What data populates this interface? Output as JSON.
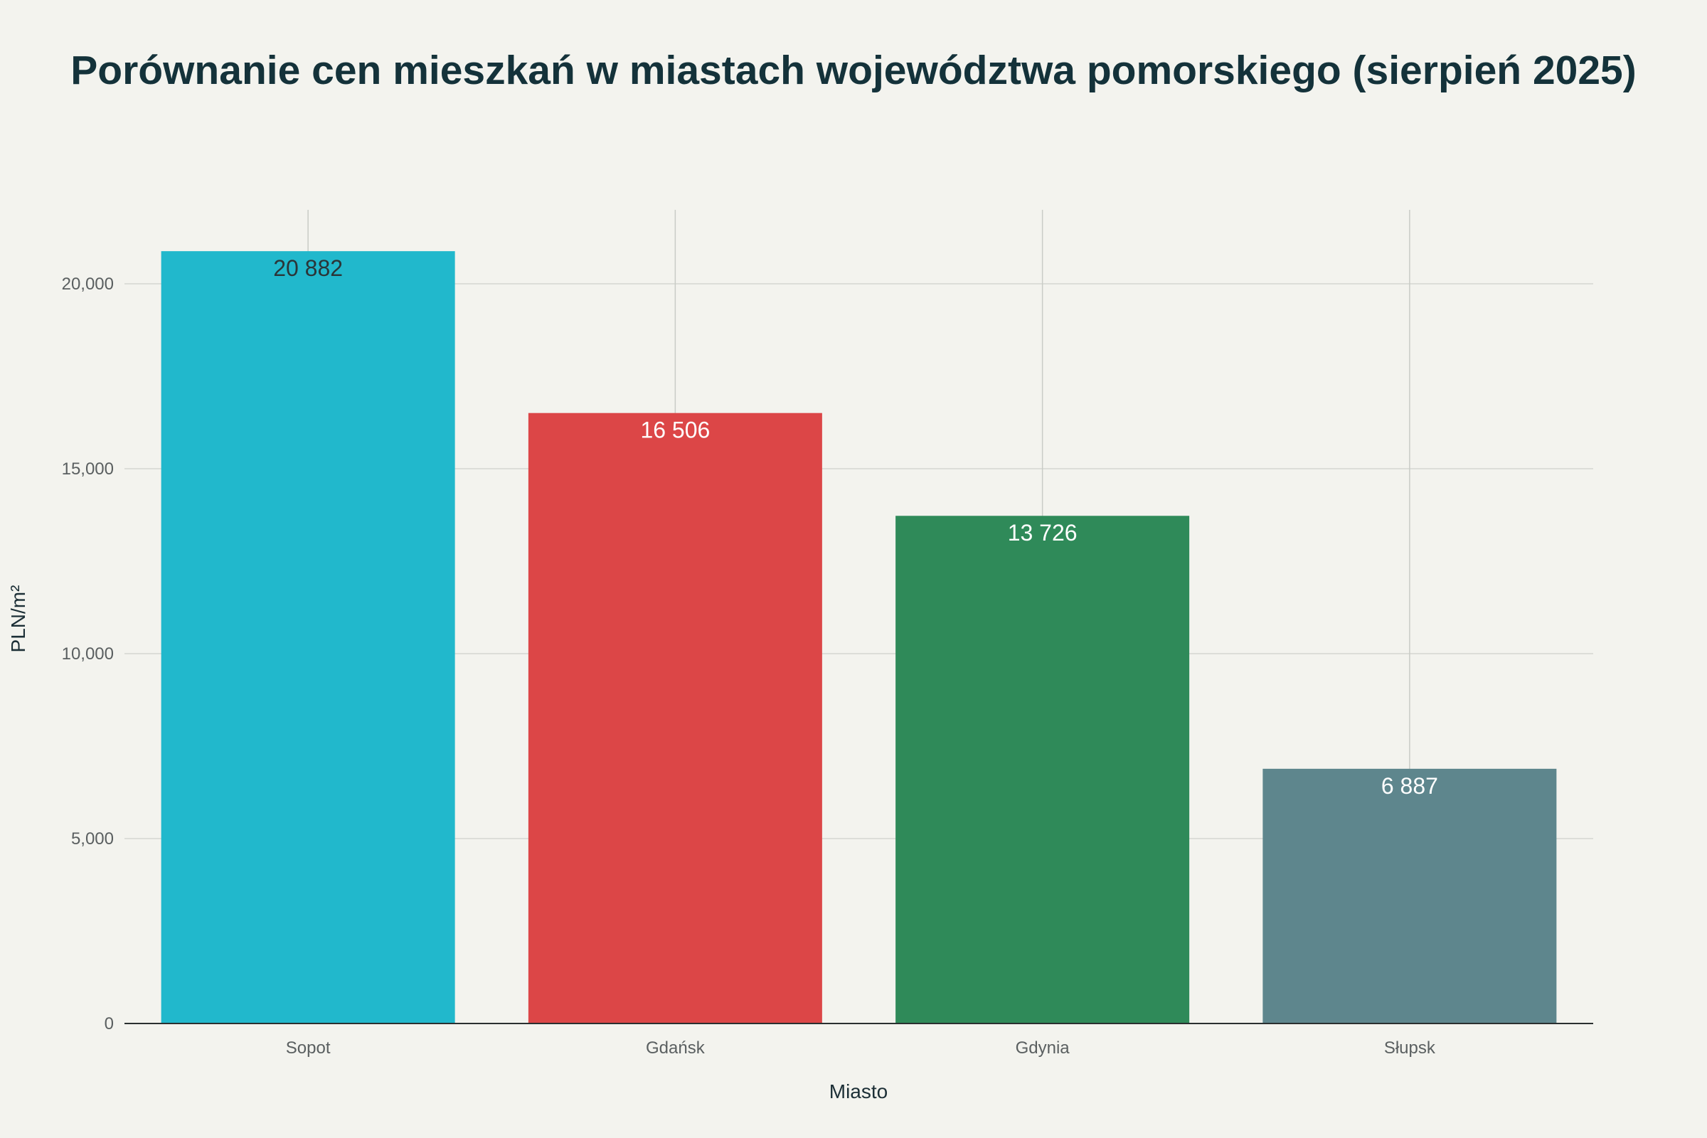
{
  "chart_data": {
    "type": "bar",
    "title": "Porównanie cen mieszkań w miastach województwa pomorskiego (sierpień 2025)",
    "xlabel": "Miasto",
    "ylabel": "PLN/m²",
    "categories": [
      "Sopot",
      "Gdańsk",
      "Gdynia",
      "Słupsk"
    ],
    "values": [
      20882,
      16506,
      13726,
      6887
    ],
    "data_labels": [
      "20 882",
      "16 506",
      "13 726",
      "6 887"
    ],
    "bar_colors": [
      "#21b8cc",
      "#dc4647",
      "#2f8a59",
      "#5e868d"
    ],
    "data_label_colors": [
      "#2b3538",
      "#ffffff",
      "#ffffff",
      "#ffffff"
    ],
    "ylim": [
      0,
      22000
    ],
    "yticks": [
      0,
      5000,
      10000,
      15000,
      20000
    ],
    "ytick_labels": [
      "0",
      "5,000",
      "10,000",
      "15,000",
      "20,000"
    ],
    "grid": true,
    "legend": false
  }
}
